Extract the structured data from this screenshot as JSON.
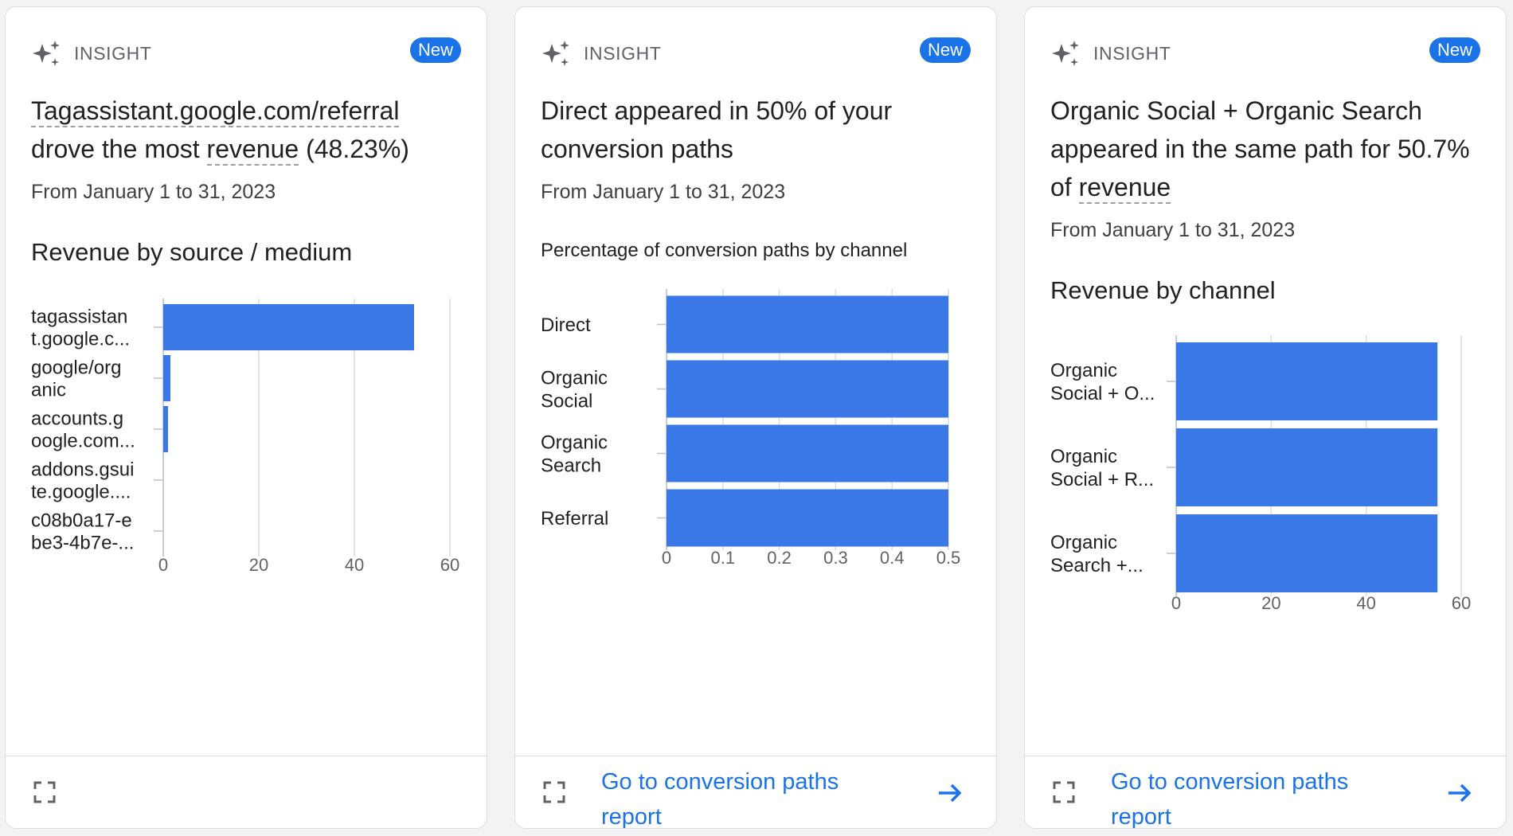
{
  "insight_label": "INSIGHT",
  "new_badge": "New",
  "cards": [
    {
      "headline_pre": "",
      "headline_dotted1": "Tagassistant.google.com/referral",
      "headline_mid": " drove the most ",
      "headline_dotted2": "revenue",
      "headline_post": " (48.23%)",
      "date": "From January 1 to 31, 2023",
      "chart_title": "Revenue by source / medium",
      "footer_link": ""
    },
    {
      "headline": "Direct appeared in 50% of your conversion paths",
      "date": "From January 1 to 31, 2023",
      "chart_title": "Percentage of conversion paths by channel",
      "footer_link": "Go to conversion paths report"
    },
    {
      "headline_pre": "Organic Social + Organic Search appeared in the same path for 50.7% of ",
      "headline_dotted": "revenue",
      "date": "From January 1 to 31, 2023",
      "chart_title": "Revenue by channel",
      "footer_link": "Go to conversion paths report"
    }
  ],
  "chart_data": [
    {
      "type": "bar",
      "orientation": "horizontal",
      "categories": [
        [
          "tagassistan",
          "t.google.c..."
        ],
        [
          "google/org",
          "anic"
        ],
        [
          "accounts.g",
          "oogle.com..."
        ],
        [
          "addons.gsui",
          "te.google...."
        ],
        [
          "c08b0a17-e",
          "be3-4b7e-..."
        ]
      ],
      "values": [
        52.5,
        1.5,
        1.0,
        0,
        0
      ],
      "xlim": [
        0,
        60
      ],
      "ticks": [
        "0",
        "20",
        "40",
        "60"
      ],
      "tick_values": [
        0,
        20,
        40,
        60
      ],
      "grid": true,
      "color": "#3b78e7"
    },
    {
      "type": "bar",
      "orientation": "horizontal",
      "categories": [
        [
          "Direct"
        ],
        [
          "Organic",
          "Social"
        ],
        [
          "Organic",
          "Search"
        ],
        [
          "Referral"
        ]
      ],
      "values": [
        0.5,
        0.5,
        0.5,
        0.5
      ],
      "xlim": [
        0,
        0.5
      ],
      "ticks": [
        "0",
        "0.1",
        "0.2",
        "0.3",
        "0.4",
        "0.5"
      ],
      "tick_values": [
        0,
        0.1,
        0.2,
        0.3,
        0.4,
        0.5
      ],
      "grid": true,
      "color": "#3b78e7"
    },
    {
      "type": "bar",
      "orientation": "horizontal",
      "categories": [
        [
          "Organic",
          "Social + O..."
        ],
        [
          "Organic",
          "Social + R..."
        ],
        [
          "Organic",
          "Search +..."
        ]
      ],
      "values": [
        55,
        55,
        55
      ],
      "xlim": [
        0,
        60
      ],
      "ticks": [
        "0",
        "20",
        "40",
        "60"
      ],
      "tick_values": [
        0,
        20,
        40,
        60
      ],
      "grid": true,
      "color": "#3b78e7"
    }
  ]
}
